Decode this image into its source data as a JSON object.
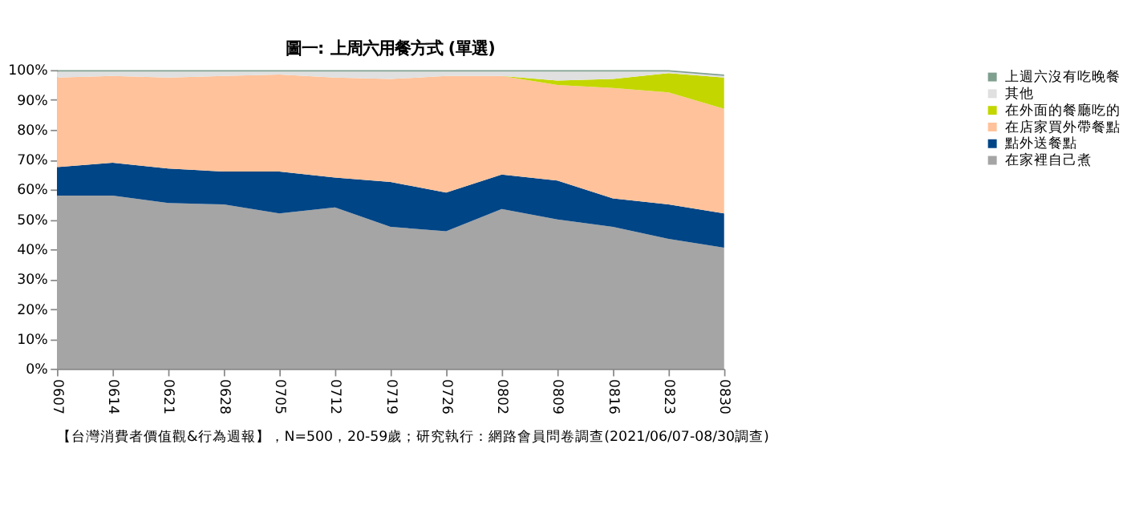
{
  "chart_data": {
    "type": "area",
    "stacked": true,
    "title": "圖一: 上周六用餐方式 (單選)",
    "categories": [
      "0607",
      "0614",
      "0621",
      "0628",
      "0705",
      "0712",
      "0719",
      "0726",
      "0802",
      "0809",
      "0816",
      "0823",
      "0830"
    ],
    "series": [
      {
        "name": "在家裡自己煮",
        "color": "#a5a5a5",
        "values": [
          58,
          58,
          55.5,
          55,
          52,
          54,
          47.5,
          46,
          53.5,
          50,
          47.5,
          43.5,
          40.5
        ]
      },
      {
        "name": "點外送餐點",
        "color": "#004586",
        "values": [
          9.5,
          11,
          11.5,
          11,
          14,
          10,
          15,
          13,
          11.5,
          13,
          9.5,
          11.5,
          11.5
        ]
      },
      {
        "name": "在店家買外帶餐點",
        "color": "#ffc29a",
        "values": [
          30,
          29,
          30.5,
          32,
          32.5,
          33.5,
          34.5,
          39,
          33,
          32,
          37,
          37.5,
          35
        ]
      },
      {
        "name": "在外面的餐廳吃的",
        "color": "#c3d600",
        "values": [
          0,
          0,
          0,
          0,
          0,
          0,
          0,
          0,
          0,
          1.5,
          3,
          6.5,
          10.5
        ]
      },
      {
        "name": "其他",
        "color": "#e0e0e0",
        "values": [
          2,
          1.5,
          2,
          1.5,
          1,
          2,
          2.5,
          1.5,
          1.5,
          3,
          2.5,
          0.5,
          0.5
        ]
      },
      {
        "name": "上週六沒有吃晚餐",
        "color": "#7f9f8f",
        "values": [
          0.5,
          0.5,
          0.5,
          0.5,
          0.5,
          0.5,
          0.5,
          0.5,
          0.5,
          0.5,
          0.5,
          0.5,
          0.5
        ]
      }
    ],
    "ylim": [
      0,
      100
    ],
    "yticks": [
      {
        "value": 0,
        "label": "0%"
      },
      {
        "value": 10,
        "label": "10%"
      },
      {
        "value": 20,
        "label": "20%"
      },
      {
        "value": 30,
        "label": "30%"
      },
      {
        "value": 40,
        "label": "40%"
      },
      {
        "value": 50,
        "label": "50%"
      },
      {
        "value": 60,
        "label": "60%"
      },
      {
        "value": 70,
        "label": "70%"
      },
      {
        "value": 80,
        "label": "80%"
      },
      {
        "value": 90,
        "label": "90%"
      },
      {
        "value": 100,
        "label": "100%"
      }
    ],
    "legend": "right",
    "annotations": [
      "【台灣消費者價值觀&行為週報】，N=500，20-59歲；研究執行：網路會員問卷調查(2021/06/07-08/30調查)"
    ]
  }
}
